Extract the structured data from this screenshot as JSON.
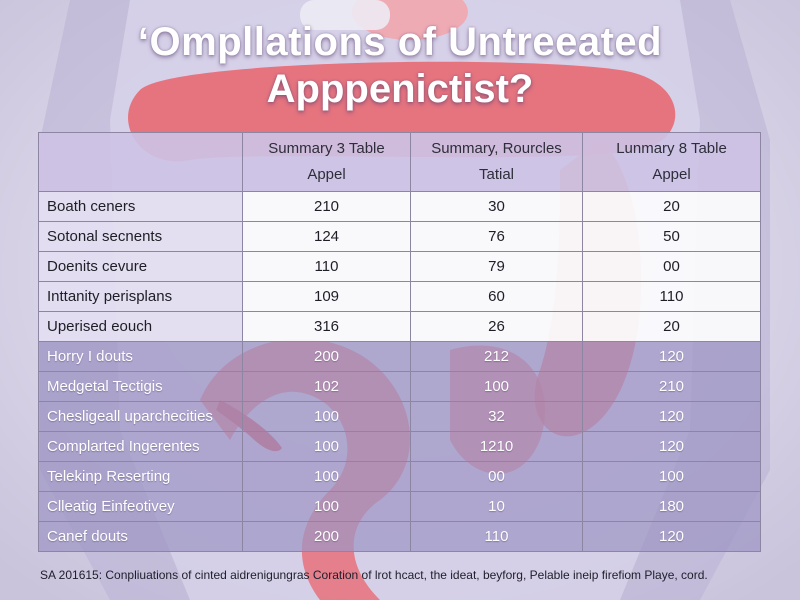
{
  "title": {
    "line1": "‘Ompllations of Untreeated",
    "line2": "Apppenictist?"
  },
  "table": {
    "headers": [
      {
        "lines": [
          "",
          ""
        ]
      },
      {
        "lines": [
          "Summary 3 Table",
          "Appel"
        ]
      },
      {
        "lines": [
          "Summary, Rourcles",
          "Tatial"
        ]
      },
      {
        "lines": [
          "Lunmary 8 Table",
          "Appel"
        ]
      }
    ],
    "rows": [
      {
        "label": "Boath ceners",
        "values": [
          "210",
          "30",
          "20"
        ]
      },
      {
        "label": "Sotonal secnents",
        "values": [
          "124",
          "76",
          "50"
        ]
      },
      {
        "label": "Doenits cevure",
        "values": [
          "110",
          "79",
          "00"
        ]
      },
      {
        "label": "Inttanity perisplans",
        "values": [
          "109",
          "60",
          "110"
        ]
      },
      {
        "label": "Uperised eouch",
        "values": [
          "316",
          "26",
          "20"
        ]
      },
      {
        "label": "Horry I douts",
        "values": [
          "200",
          "212",
          "120"
        ]
      },
      {
        "label": "Medgetal Tectigis",
        "values": [
          "102",
          "100",
          "210"
        ]
      },
      {
        "label": "Chesligeall uparchecities",
        "values": [
          "100",
          "32",
          "120"
        ]
      },
      {
        "label": "Complarted Ingerentes",
        "values": [
          "100",
          "1210",
          "120"
        ]
      },
      {
        "label": "Telekinp Reserting",
        "values": [
          "100",
          "00",
          "100"
        ]
      },
      {
        "label": "Clleatig Einfeotivey",
        "values": [
          "100",
          "10",
          "180"
        ]
      },
      {
        "label": "Canef douts",
        "values": [
          "200",
          "110",
          "120"
        ]
      }
    ]
  },
  "footer": "SA 201615: Conpliuations of cinted aidrenigungras Coration of lrot hcact, the ideat, beyforg, Pelable ineip firefiom Playe, cord.",
  "colors": {
    "background": "#e9e6f2",
    "organ_red": "#e8646c",
    "header_lavender": "#cdc2e4"
  }
}
